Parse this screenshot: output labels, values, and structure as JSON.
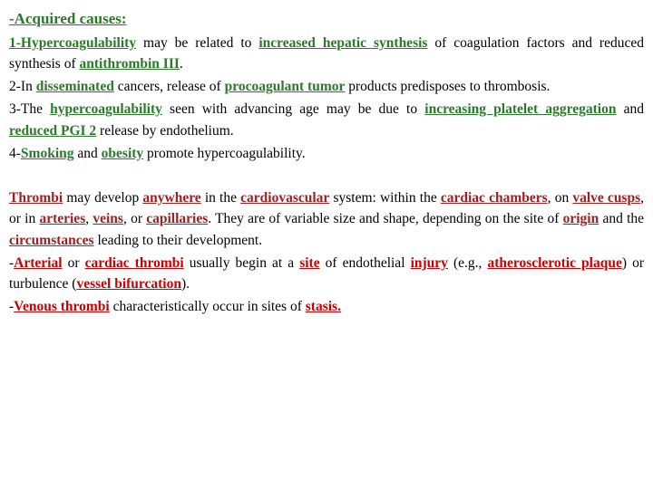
{
  "heading": "-Acquired causes:",
  "p1": {
    "s1": "1-Hypercoagulability",
    "t1": " may be related to ",
    "s2": "increased hepatic synthesis",
    "t2": " of coagulation factors and reduced synthesis of ",
    "s3": "antithrombin III",
    "t3": "."
  },
  "p2": {
    "t1": "2-In ",
    "s1": "disseminated",
    "t2": " cancers, release of ",
    "s2": "procoagulant tumor",
    "t3": " products predisposes to thrombosis."
  },
  "p3": {
    "t1": "3-The ",
    "s1": "hypercoagulability",
    "t2": " seen with advancing age may be due to ",
    "s2": "increasing platelet aggregation",
    "t3": " and ",
    "s3": "reduced PGI 2",
    "t4": " release by endothelium."
  },
  "p4": {
    "t1": "4-",
    "s1": "Smoking",
    "t2": " and ",
    "s2": "obesity",
    "t3": " promote hypercoagulability."
  },
  "p5": {
    "lead": "  ",
    "s1": "Thrombi",
    "t1": " may develop ",
    "s2": "anywhere",
    "t2": " in the ",
    "s3": "cardiovascular",
    "t3": " system: within the ",
    "s4": "cardiac chambers",
    "t4": ", on ",
    "s5": "valve cusps",
    "t5": ", or in ",
    "s6": "arteries",
    "t6": ", ",
    "s7": "veins",
    "t7": ", or ",
    "s8": "capillaries",
    "t8": ". They are of variable size and shape, depending on the site of ",
    "s9": "origin",
    "t9": " and the ",
    "s10": "circumstances",
    "t10": " leading to their development."
  },
  "p6": {
    "t1": "-",
    "s1": "Arterial",
    "t2": " or ",
    "s2": "cardiac thrombi",
    "t3": " usually begin at a ",
    "s3": "site",
    "t4": " of endothelial ",
    "s4": "injury",
    "t5": " (e.g., ",
    "s5": "atherosclerotic plaque",
    "t6": ") or turbulence (",
    "s6": "vessel bifurcation",
    "t7": ")."
  },
  "p7": {
    "t1": "-",
    "s1": "Venous thrombi",
    "t2": " characteristically occur in sites of ",
    "s2": "stasis.",
    "t3": ""
  }
}
